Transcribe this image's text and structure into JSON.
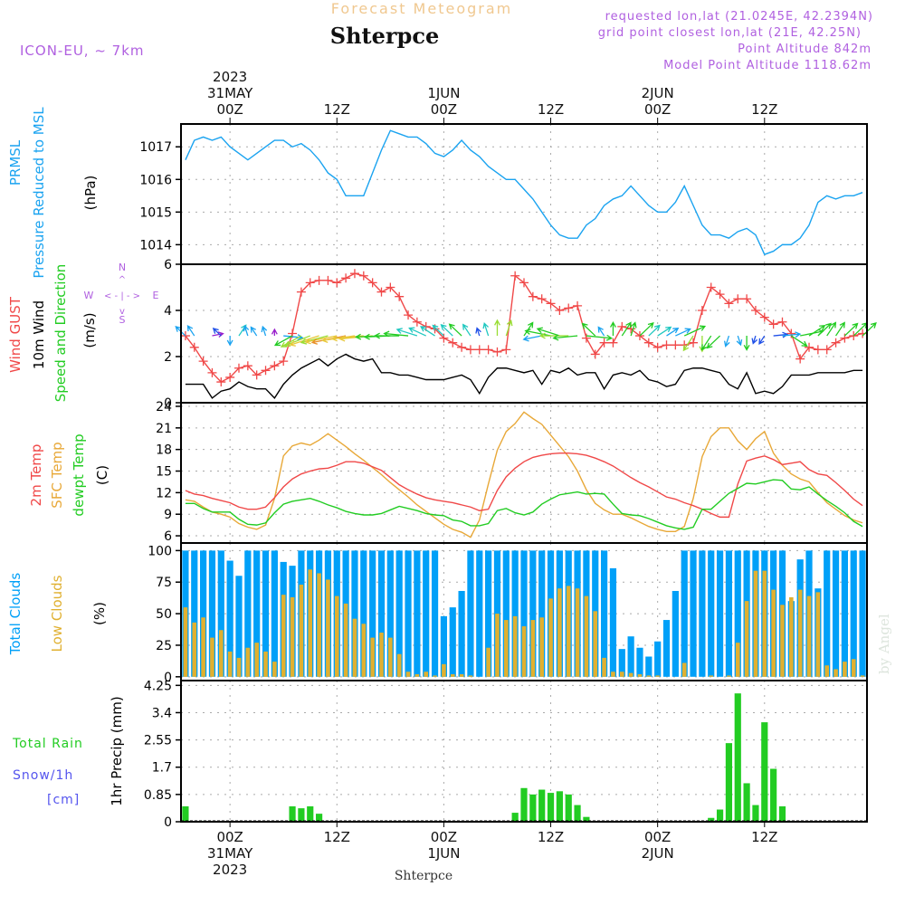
{
  "header": {
    "subtitle": "Forecast Meteogram",
    "location": "Shterpce",
    "model": "ICON-EU, ~ 7km",
    "requested": "requested lon,lat (21.0245E, 42.2394N)",
    "grid_point": "grid point closest lon,lat (21E, 42.25N)",
    "point_altitude": "Point Altitude 842m",
    "model_altitude": "Model Point Altitude 1118.62m",
    "footer_location": "Shterpce",
    "watermark": "by Angel"
  },
  "colors": {
    "pressure": "#1aa3f0",
    "gust": "#f04848",
    "wind": "#000000",
    "temp2m": "#f04848",
    "sfc": "#e8a838",
    "dewpt": "#22cc22",
    "total_clouds": "#00a0f8",
    "low_clouds": "#e0b030",
    "precip": "#22cc22",
    "snow": "#5555ee",
    "info": "#b060e0"
  },
  "time_axis": {
    "top": [
      {
        "hour": 0,
        "lines": [
          "2023",
          "31MAY",
          "00Z"
        ]
      },
      {
        "hour": 12,
        "lines": [
          "12Z"
        ]
      },
      {
        "hour": 24,
        "lines": [
          "1JUN",
          "00Z"
        ]
      },
      {
        "hour": 36,
        "lines": [
          "12Z"
        ]
      },
      {
        "hour": 48,
        "lines": [
          "2JUN",
          "00Z"
        ]
      },
      {
        "hour": 60,
        "lines": [
          "12Z"
        ]
      }
    ],
    "bottom": [
      {
        "hour": 0,
        "lines": [
          "00Z",
          "31MAY",
          "2023"
        ]
      },
      {
        "hour": 12,
        "lines": [
          "12Z"
        ]
      },
      {
        "hour": 24,
        "lines": [
          "00Z",
          "1JUN"
        ]
      },
      {
        "hour": 36,
        "lines": [
          "12Z"
        ]
      },
      {
        "hour": 48,
        "lines": [
          "00Z",
          "2JUN"
        ]
      },
      {
        "hour": 60,
        "lines": [
          "12Z"
        ]
      }
    ],
    "start_hour": -5.5,
    "end_hour": 71.5
  },
  "panels": {
    "pressure": {
      "labels": [
        "PRMSL",
        "Pressure Reduced to MSL"
      ],
      "unit": "(hPa)",
      "ticks": [
        "1014",
        "1015",
        "1016",
        "1017"
      ]
    },
    "wind": {
      "labels": [
        "Wind GUST",
        "10m Wind",
        "Speed and Direction"
      ],
      "unit": "(m/s)",
      "ticks": [
        "0",
        "2",
        "4",
        "6"
      ],
      "compass": {
        "n": "N",
        "s": "S",
        "e": "E",
        "w": "W"
      }
    },
    "temp": {
      "labels": [
        "2m Temp",
        "SFC Temp",
        "dewpt Temp"
      ],
      "unit": "(C)",
      "ticks": [
        "6",
        "9",
        "12",
        "15",
        "18",
        "21",
        "24"
      ]
    },
    "clouds": {
      "labels": [
        "Total Clouds",
        "Low Clouds"
      ],
      "unit": "(%)",
      "ticks": [
        "0",
        "25",
        "50",
        "75",
        "100"
      ]
    },
    "precip": {
      "labels": [
        "Total   Rain",
        "Snow/1h",
        "[cm]"
      ],
      "unit": "1hr Precip (mm)",
      "ticks": [
        "0",
        "0.85",
        "1.7",
        "2.55",
        "3.4",
        "4.25"
      ]
    }
  },
  "chart_data": [
    {
      "type": "line",
      "title": "PRMSL Pressure Reduced to MSL",
      "ylabel": "hPa",
      "ylim": [
        1013.4,
        1017.7
      ],
      "x_start_hour": -5,
      "series": [
        {
          "name": "PRMSL",
          "values": [
            1016.6,
            1017.2,
            1017.3,
            1017.2,
            1017.3,
            1017.0,
            1016.8,
            1016.6,
            1016.8,
            1017.0,
            1017.2,
            1017.2,
            1017.0,
            1017.1,
            1016.9,
            1016.6,
            1016.2,
            1016.0,
            1015.5,
            1015.5,
            1015.5,
            1016.2,
            1016.9,
            1017.5,
            1017.4,
            1017.3,
            1017.3,
            1017.1,
            1016.8,
            1016.7,
            1016.9,
            1017.2,
            1016.9,
            1016.7,
            1016.4,
            1016.2,
            1016.0,
            1016.0,
            1015.7,
            1015.4,
            1015.0,
            1014.6,
            1014.3,
            1014.2,
            1014.2,
            1014.6,
            1014.8,
            1015.2,
            1015.4,
            1015.5,
            1015.8,
            1015.5,
            1015.2,
            1015.0,
            1015.0,
            1015.3,
            1015.8,
            1015.2,
            1014.6,
            1014.3,
            1014.3,
            1014.2,
            1014.4,
            1014.5,
            1014.3,
            1013.7,
            1013.8,
            1014.0,
            1014.0,
            1014.2,
            1014.6,
            1015.3,
            1015.5,
            1015.4,
            1015.5,
            1015.5,
            1015.6
          ]
        }
      ]
    },
    {
      "type": "line",
      "title": "Wind GUST / 10m Wind Speed and Direction",
      "ylabel": "m/s",
      "ylim": [
        0,
        6
      ],
      "x_start_hour": -5,
      "series": [
        {
          "name": "Wind GUST",
          "values": [
            2.9,
            2.4,
            1.8,
            1.3,
            0.9,
            1.1,
            1.5,
            1.6,
            1.2,
            1.4,
            1.6,
            1.8,
            3.0,
            4.8,
            5.2,
            5.3,
            5.3,
            5.2,
            5.4,
            5.6,
            5.5,
            5.2,
            4.8,
            5.0,
            4.6,
            3.8,
            3.5,
            3.3,
            3.2,
            2.8,
            2.6,
            2.4,
            2.3,
            2.3,
            2.3,
            2.2,
            2.3,
            5.5,
            5.2,
            4.6,
            4.5,
            4.3,
            4.0,
            4.1,
            4.2,
            2.8,
            2.1,
            2.6,
            2.6,
            3.3,
            3.2,
            2.9,
            2.6,
            2.4,
            2.5,
            2.5,
            2.5,
            2.6,
            4.0,
            5.0,
            4.7,
            4.3,
            4.5,
            4.5,
            4.0,
            3.7,
            3.4,
            3.5,
            3.0,
            1.9,
            2.4,
            2.3,
            2.3,
            2.6,
            2.8,
            2.9,
            3.0
          ]
        },
        {
          "name": "10m Wind",
          "values": [
            0.8,
            0.8,
            0.8,
            0.2,
            0.5,
            0.6,
            0.9,
            0.7,
            0.6,
            0.6,
            0.2,
            0.8,
            1.2,
            1.5,
            1.7,
            1.9,
            1.6,
            1.9,
            2.1,
            1.9,
            1.8,
            1.9,
            1.3,
            1.3,
            1.2,
            1.2,
            1.1,
            1.0,
            1.0,
            1.0,
            1.1,
            1.2,
            1.0,
            0.4,
            1.1,
            1.5,
            1.5,
            1.4,
            1.3,
            1.4,
            0.8,
            1.4,
            1.3,
            1.5,
            1.2,
            1.3,
            1.3,
            0.6,
            1.2,
            1.3,
            1.2,
            1.4,
            1.0,
            0.9,
            0.7,
            0.8,
            1.4,
            1.5,
            1.5,
            1.4,
            1.3,
            0.8,
            0.6,
            1.3,
            0.4,
            0.5,
            0.4,
            0.7,
            1.2,
            1.2,
            1.2,
            1.3,
            1.3,
            1.3,
            1.3,
            1.4,
            1.4
          ]
        },
        {
          "name": "Wind direction arrows (deg toward)",
          "values": [
            330,
            340,
            null,
            70,
            330,
            180,
            20,
            350,
            340,
            350,
            0,
            100,
            225,
            225,
            235,
            240,
            245,
            250,
            250,
            255,
            260,
            260,
            265,
            265,
            270,
            280,
            300,
            310,
            320,
            330,
            330,
            330,
            340,
            350,
            350,
            0,
            10,
            null,
            20,
            null,
            250,
            290,
            300,
            270,
            260,
            100,
            330,
            340,
            0,
            20,
            10,
            30,
            30,
            40,
            40,
            50,
            50,
            200,
            180,
            200,
            210,
            190,
            170,
            180,
            190,
            200,
            80,
            80,
            140,
            70,
            40,
            30,
            20,
            20,
            30,
            30,
            30
          ]
        }
      ]
    },
    {
      "type": "line",
      "title": "2m Temp / SFC Temp / dewpt Temp",
      "ylabel": "C",
      "ylim": [
        5,
        24.5
      ],
      "x_start_hour": -5,
      "series": [
        {
          "name": "2m Temp",
          "values": [
            12.3,
            11.8,
            11.6,
            11.2,
            10.9,
            10.6,
            10.0,
            9.7,
            9.7,
            10.0,
            11.3,
            12.8,
            13.9,
            14.6,
            15.0,
            15.3,
            15.4,
            15.8,
            16.3,
            16.3,
            16.1,
            15.6,
            15.1,
            14.1,
            13.1,
            12.4,
            11.8,
            11.3,
            11.0,
            10.8,
            10.6,
            10.3,
            10.0,
            9.5,
            9.7,
            12.3,
            14.2,
            15.4,
            16.3,
            16.9,
            17.2,
            17.4,
            17.5,
            17.5,
            17.4,
            17.2,
            16.8,
            16.3,
            15.7,
            14.9,
            14.1,
            13.4,
            12.8,
            12.1,
            11.4,
            11.1,
            10.6,
            10.2,
            9.7,
            9.1,
            8.6,
            8.6,
            13.2,
            16.4,
            16.8,
            17.1,
            16.6,
            15.9,
            16.1,
            16.3,
            15.2,
            14.6,
            14.4,
            13.4,
            12.3,
            11.1,
            10.2
          ]
        },
        {
          "name": "SFC Temp",
          "values": [
            11.0,
            10.8,
            10.0,
            9.3,
            9.0,
            8.6,
            7.7,
            7.2,
            6.9,
            7.5,
            11.2,
            17.1,
            18.5,
            18.9,
            18.6,
            19.3,
            20.2,
            19.3,
            18.4,
            17.4,
            16.5,
            15.5,
            14.5,
            13.4,
            12.4,
            11.4,
            10.3,
            9.4,
            8.5,
            7.6,
            6.9,
            6.5,
            5.8,
            8.2,
            13.2,
            17.9,
            20.5,
            21.6,
            23.2,
            22.3,
            21.5,
            20.0,
            18.5,
            17.0,
            15.0,
            12.4,
            10.5,
            9.6,
            9.0,
            9.0,
            8.5,
            7.9,
            7.3,
            6.9,
            6.6,
            6.6,
            7.3,
            11.2,
            17.0,
            19.8,
            21.0,
            21.0,
            19.2,
            18.0,
            19.5,
            20.5,
            17.5,
            15.8,
            14.6,
            13.9,
            13.5,
            12.0,
            10.6,
            9.7,
            8.8,
            8.2,
            7.8
          ]
        },
        {
          "name": "dewpt Temp",
          "values": [
            10.5,
            10.5,
            9.8,
            9.3,
            9.3,
            9.3,
            8.3,
            7.6,
            7.5,
            7.8,
            9.2,
            10.4,
            10.8,
            11.0,
            11.2,
            10.8,
            10.3,
            9.9,
            9.4,
            9.1,
            8.9,
            8.9,
            9.1,
            9.6,
            10.1,
            9.8,
            9.5,
            9.1,
            8.9,
            8.8,
            8.2,
            8.0,
            7.4,
            7.4,
            7.7,
            9.5,
            9.8,
            9.2,
            8.9,
            9.3,
            10.4,
            11.1,
            11.7,
            11.9,
            12.1,
            11.8,
            11.9,
            11.8,
            10.4,
            9.1,
            8.9,
            8.8,
            8.4,
            7.9,
            7.4,
            7.1,
            6.9,
            7.2,
            9.7,
            9.7,
            10.8,
            11.9,
            12.6,
            13.3,
            13.2,
            13.5,
            13.8,
            13.7,
            12.5,
            12.4,
            12.8,
            11.8,
            10.9,
            10.1,
            9.2,
            8.0,
            7.3
          ]
        }
      ]
    },
    {
      "type": "bar",
      "title": "Total Clouds / Low Clouds",
      "ylabel": "%",
      "ylim": [
        0,
        100
      ],
      "x_start_hour": -5,
      "series": [
        {
          "name": "Total Clouds",
          "values": [
            100,
            100,
            100,
            100,
            100,
            92,
            80,
            100,
            100,
            100,
            100,
            91,
            88,
            100,
            100,
            100,
            100,
            100,
            100,
            100,
            100,
            100,
            100,
            100,
            100,
            100,
            100,
            100,
            100,
            48,
            55,
            68,
            100,
            100,
            100,
            100,
            100,
            100,
            100,
            100,
            100,
            100,
            100,
            100,
            100,
            100,
            100,
            100,
            86,
            22,
            32,
            23,
            16,
            28,
            45,
            68,
            100,
            100,
            100,
            100,
            100,
            100,
            100,
            100,
            100,
            100,
            100,
            100,
            60,
            93,
            100,
            70,
            100,
            100,
            100,
            100,
            100
          ]
        },
        {
          "name": "Low Clouds",
          "values": [
            55,
            43,
            47,
            31,
            37,
            20,
            15,
            23,
            27,
            20,
            12,
            65,
            63,
            73,
            85,
            82,
            77,
            64,
            58,
            46,
            42,
            31,
            35,
            31,
            18,
            4,
            2,
            4,
            1,
            10,
            2,
            2,
            1,
            0,
            23,
            50,
            45,
            48,
            40,
            45,
            47,
            62,
            70,
            72,
            70,
            64,
            52,
            15,
            4,
            4,
            3,
            2,
            1,
            1,
            0,
            0,
            11,
            0,
            0,
            1,
            0,
            1,
            27,
            60,
            84,
            84,
            69,
            57,
            63,
            69,
            64,
            67,
            9,
            6,
            12,
            14,
            1
          ]
        }
      ]
    },
    {
      "type": "bar",
      "title": "1hr Precip (mm)",
      "ylabel": "mm",
      "ylim": [
        0,
        4.25
      ],
      "x_start_hour": -5,
      "series": [
        {
          "name": "Total Rain",
          "values": [
            0.48,
            0,
            0.03,
            0,
            0,
            0,
            0,
            0,
            0,
            0,
            0,
            0,
            0.48,
            0.42,
            0.48,
            0.25,
            0.03,
            0,
            0,
            0,
            0,
            0,
            0,
            0,
            0,
            0,
            0,
            0,
            0,
            0,
            0,
            0,
            0,
            0,
            0,
            0,
            0,
            0.28,
            1.05,
            0.85,
            1.0,
            0.9,
            0.95,
            0.85,
            0.52,
            0.15,
            0,
            0,
            0,
            0,
            0,
            0,
            0,
            0,
            0,
            0,
            0,
            0,
            0,
            0.12,
            0.38,
            2.45,
            4.0,
            1.2,
            0.52,
            3.1,
            1.65,
            0.48,
            0.03,
            0,
            0,
            0,
            0,
            0,
            0,
            0,
            0
          ]
        },
        {
          "name": "Snow/1h",
          "values": []
        }
      ]
    }
  ]
}
